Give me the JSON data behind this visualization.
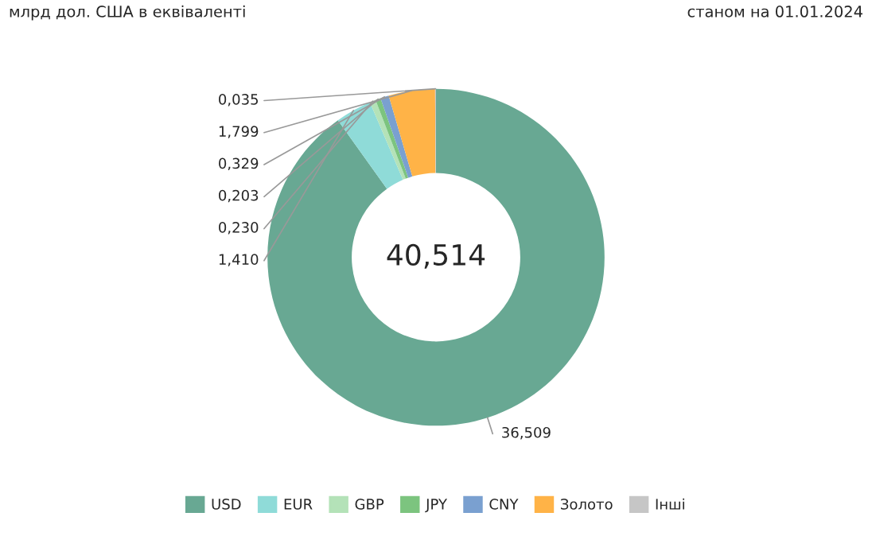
{
  "chart_data": {
    "type": "donut",
    "title": "млрд дол. США в еквіваленті",
    "subtitle": "станом на 01.01.2024",
    "categories": [
      "USD",
      "EUR",
      "GBP",
      "JPY",
      "CNY",
      "Золото",
      "Інші"
    ],
    "values": [
      36.509,
      1.41,
      0.23,
      0.203,
      0.329,
      1.799,
      0.035
    ],
    "value_labels": [
      "36,509",
      "1,410",
      "0,230",
      "0,203",
      "0,329",
      "1,799",
      "0,035"
    ],
    "colors": [
      "#68a893",
      "#8fdbd8",
      "#b4e2b8",
      "#7cc47f",
      "#7aa0d0",
      "#ffb347",
      "#c6c6c6"
    ],
    "annotations": [
      "40,514"
    ],
    "legend": "bottom"
  }
}
